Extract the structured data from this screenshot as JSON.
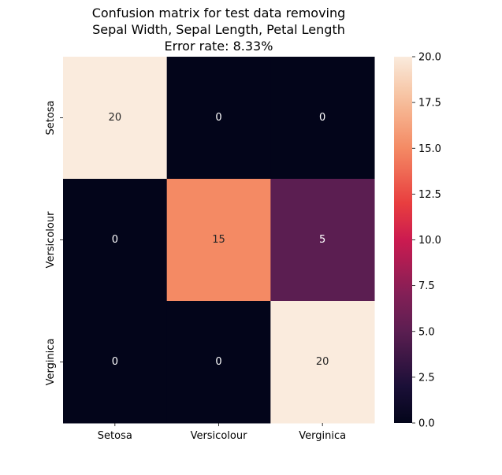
{
  "chart_data": {
    "type": "heatmap",
    "title_lines": [
      "Confusion matrix for test data removing",
      "Sepal Width, Sepal Length, Petal Length",
      "Error rate: 8.33%"
    ],
    "x_categories": [
      "Setosa",
      "Versicolour",
      "Verginica"
    ],
    "y_categories": [
      "Setosa",
      "Versicolour",
      "Verginica"
    ],
    "values": [
      [
        20,
        0,
        0
      ],
      [
        0,
        15,
        5
      ],
      [
        0,
        0,
        20
      ]
    ],
    "annotations": [
      [
        "20",
        "0",
        "0"
      ],
      [
        "0",
        "15",
        "5"
      ],
      [
        "0",
        "0",
        "20"
      ]
    ],
    "colorbar": {
      "range": [
        0,
        20
      ],
      "ticks": [
        "0.0",
        "2.5",
        "5.0",
        "7.5",
        "10.0",
        "12.5",
        "15.0",
        "17.5",
        "20.0"
      ],
      "tick_values": [
        0,
        2.5,
        5,
        7.5,
        10,
        12.5,
        15,
        17.5,
        20
      ]
    },
    "colormap": "rocket",
    "colors": {
      "low": "#03051a",
      "mid_25": "#5b1e51",
      "mid_75": "#f48a64",
      "high": "#faebdd"
    }
  }
}
